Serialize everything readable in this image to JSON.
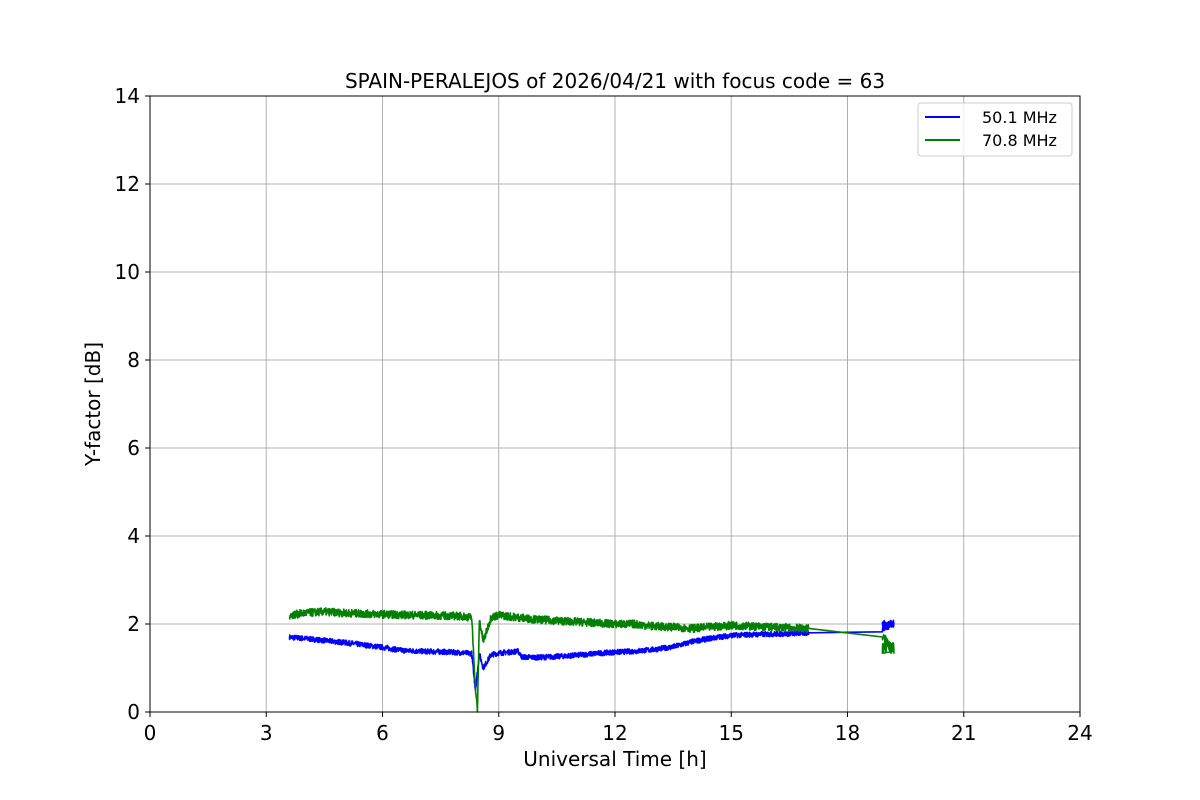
{
  "chart_data": {
    "type": "line",
    "title": "SPAIN-PERALEJOS of 2026/04/21 with focus code = 63",
    "xlabel": "Universal Time [h]",
    "ylabel": "Y-factor [dB]",
    "xlim": [
      0,
      24
    ],
    "ylim": [
      0,
      14
    ],
    "xticks": [
      0,
      3,
      6,
      9,
      12,
      15,
      18,
      21,
      24
    ],
    "yticks": [
      0,
      2,
      4,
      6,
      8,
      10,
      12,
      14
    ],
    "grid": true,
    "legend_position": "top-right",
    "series": [
      {
        "name": "50.1 MHz",
        "color": "#0000ff",
        "noise": 0.06,
        "x": [
          3.6,
          4.0,
          5.0,
          6.0,
          6.5,
          7.0,
          7.5,
          8.0,
          8.3,
          8.4,
          8.5,
          8.6,
          8.8,
          9.0,
          9.5,
          9.6,
          10.0,
          10.5,
          11.0,
          11.5,
          12.0,
          12.5,
          13.0,
          13.5,
          14.0,
          14.5,
          15.0,
          15.5,
          16.0,
          16.5,
          17.0,
          18.9,
          19.2
        ],
        "y": [
          1.7,
          1.67,
          1.58,
          1.47,
          1.4,
          1.38,
          1.37,
          1.35,
          1.33,
          0.5,
          1.32,
          1.0,
          1.3,
          1.34,
          1.38,
          1.25,
          1.24,
          1.26,
          1.29,
          1.33,
          1.36,
          1.38,
          1.42,
          1.48,
          1.6,
          1.68,
          1.74,
          1.76,
          1.77,
          1.78,
          1.8,
          1.88,
          2.0
        ]
      },
      {
        "name": "70.8 MHz",
        "color": "#008000",
        "noise": 0.09,
        "x": [
          3.6,
          4.0,
          4.5,
          5.0,
          6.0,
          7.0,
          8.0,
          8.3,
          8.4,
          8.45,
          8.5,
          8.6,
          8.8,
          9.0,
          10.0,
          11.0,
          12.0,
          12.5,
          13.0,
          13.5,
          14.0,
          15.0,
          16.0,
          17.0,
          18.9,
          19.2
        ],
        "y": [
          2.2,
          2.25,
          2.28,
          2.25,
          2.22,
          2.2,
          2.18,
          2.15,
          0.55,
          0.0,
          2.1,
          1.6,
          2.15,
          2.2,
          2.1,
          2.05,
          2.0,
          2.0,
          1.95,
          1.93,
          1.9,
          1.97,
          1.93,
          1.9,
          1.72,
          1.45
        ]
      }
    ]
  }
}
